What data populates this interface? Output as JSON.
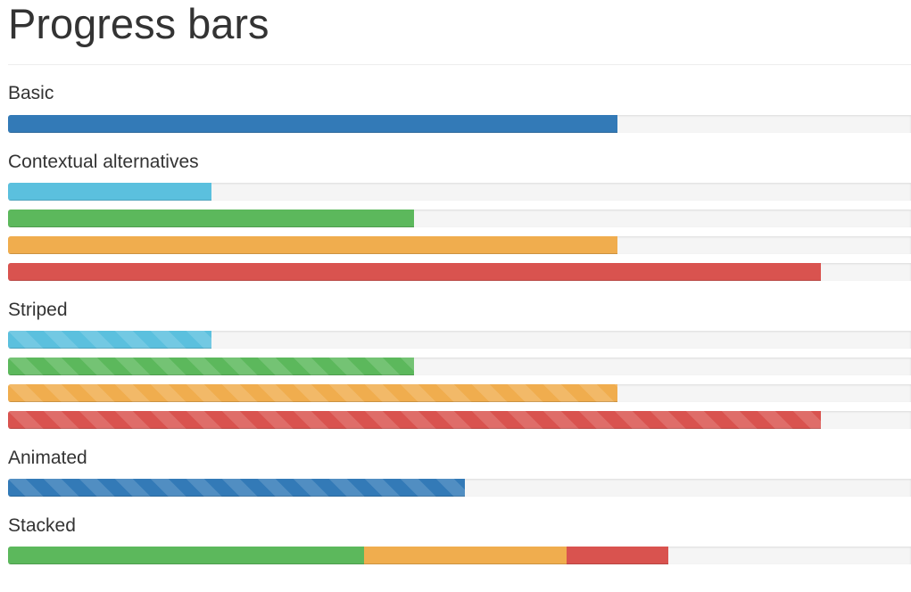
{
  "page": {
    "title": "Progress bars"
  },
  "colors": {
    "primary": "#337ab7",
    "info": "#5bc0de",
    "success": "#5cb85c",
    "warning": "#f0ad4e",
    "danger": "#d9534f",
    "track": "#f5f5f5"
  },
  "sections": {
    "basic": {
      "heading": "Basic",
      "bars": [
        {
          "name": "basic-primary",
          "percent": 67.5,
          "color": "primary",
          "striped": false,
          "animated": false
        }
      ]
    },
    "contextual": {
      "heading": "Contextual alternatives",
      "bars": [
        {
          "name": "contextual-info",
          "percent": 22.5,
          "color": "info",
          "striped": false,
          "animated": false
        },
        {
          "name": "contextual-success",
          "percent": 45,
          "color": "success",
          "striped": false,
          "animated": false
        },
        {
          "name": "contextual-warning",
          "percent": 67.5,
          "color": "warning",
          "striped": false,
          "animated": false
        },
        {
          "name": "contextual-danger",
          "percent": 90,
          "color": "danger",
          "striped": false,
          "animated": false
        }
      ]
    },
    "striped": {
      "heading": "Striped",
      "bars": [
        {
          "name": "striped-info",
          "percent": 22.5,
          "color": "info",
          "striped": true,
          "animated": false
        },
        {
          "name": "striped-success",
          "percent": 45,
          "color": "success",
          "striped": true,
          "animated": false
        },
        {
          "name": "striped-warning",
          "percent": 67.5,
          "color": "warning",
          "striped": true,
          "animated": false
        },
        {
          "name": "striped-danger",
          "percent": 90,
          "color": "danger",
          "striped": true,
          "animated": false
        }
      ]
    },
    "animated": {
      "heading": "Animated",
      "bars": [
        {
          "name": "animated-primary",
          "percent": 50.6,
          "color": "primary",
          "striped": true,
          "animated": true
        }
      ]
    },
    "stacked": {
      "heading": "Stacked",
      "segments": [
        {
          "name": "stacked-success",
          "percent": 39.4,
          "color": "success"
        },
        {
          "name": "stacked-warning",
          "percent": 22.5,
          "color": "warning"
        },
        {
          "name": "stacked-danger",
          "percent": 11.2,
          "color": "danger"
        }
      ]
    }
  }
}
